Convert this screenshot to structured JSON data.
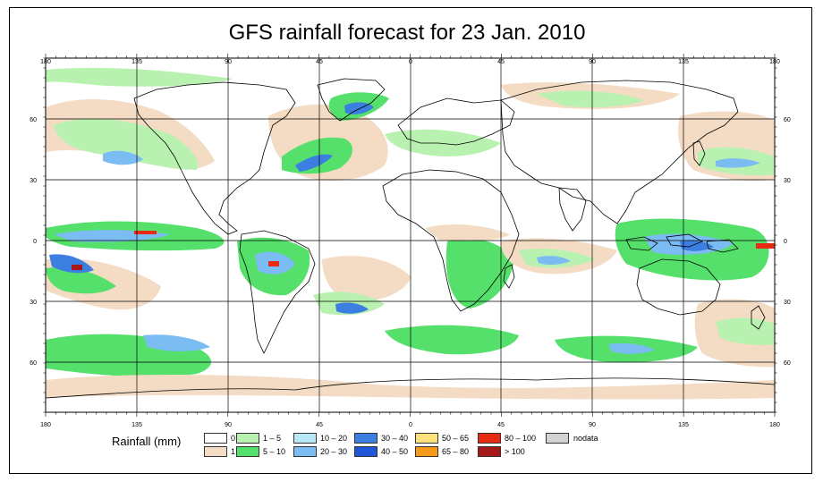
{
  "title": "GFS rainfall forecast for 23 Jan. 2010",
  "axes": {
    "lon_top": [
      "180",
      "135",
      "90",
      "45",
      "0",
      "45",
      "90",
      "135",
      "180"
    ],
    "lon_bottom": [
      "180",
      "135",
      "90",
      "45",
      "0",
      "45",
      "90",
      "135",
      "180"
    ],
    "lat_left": [
      "60",
      "30",
      "0",
      "30",
      "60"
    ],
    "lat_right": [
      "60",
      "30",
      "0",
      "30",
      "60"
    ]
  },
  "legend": {
    "title": "Rainfall (mm)",
    "items": [
      {
        "label": "0",
        "color": "#ffffff"
      },
      {
        "label": "1",
        "color": "#f3dcc3"
      },
      {
        "label": "1 – 5",
        "color": "#b9f2b0"
      },
      {
        "label": "5 – 10",
        "color": "#55e06b"
      },
      {
        "label": "10 – 20",
        "color": "#b8e8f5"
      },
      {
        "label": "20 – 30",
        "color": "#7bbcf3"
      },
      {
        "label": "30 – 40",
        "color": "#3d7fe0"
      },
      {
        "label": "40 – 50",
        "color": "#1f56d8"
      },
      {
        "label": "50 – 65",
        "color": "#fbe27a"
      },
      {
        "label": "65 – 80",
        "color": "#f59a18"
      },
      {
        "label": "80 – 100",
        "color": "#e82a14"
      },
      {
        "label": "> 100",
        "color": "#a51818"
      },
      {
        "label": "nodata",
        "color": "#d3d3d3"
      }
    ]
  },
  "colors": {
    "land_outline": "#000000",
    "grid": "#000000",
    "ocean": "#ffffff"
  }
}
